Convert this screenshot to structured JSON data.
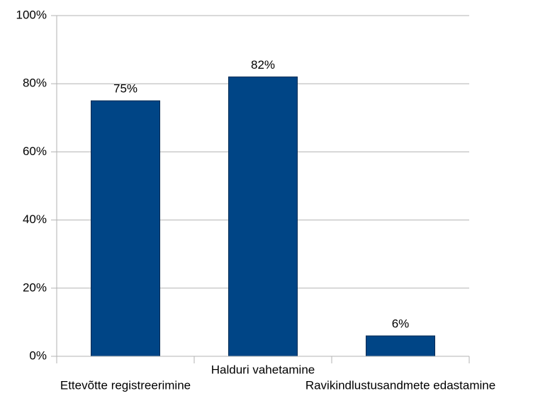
{
  "chart_data": {
    "type": "bar",
    "categories": [
      "Ettevõtte registreerimine",
      "Halduri vahetamine",
      "Ravikindlustusandmete edastamine"
    ],
    "values": [
      75,
      82,
      6
    ],
    "value_labels": [
      "75%",
      "82%",
      "6%"
    ],
    "color": "#004586",
    "ylim": [
      0,
      100
    ],
    "yticks": [
      {
        "value": 0,
        "label": "0%"
      },
      {
        "value": 20,
        "label": "20%"
      },
      {
        "value": 40,
        "label": "40%"
      },
      {
        "value": 60,
        "label": "60%"
      },
      {
        "value": 80,
        "label": "80%"
      },
      {
        "value": 100,
        "label": "100%"
      }
    ],
    "grid": true
  }
}
